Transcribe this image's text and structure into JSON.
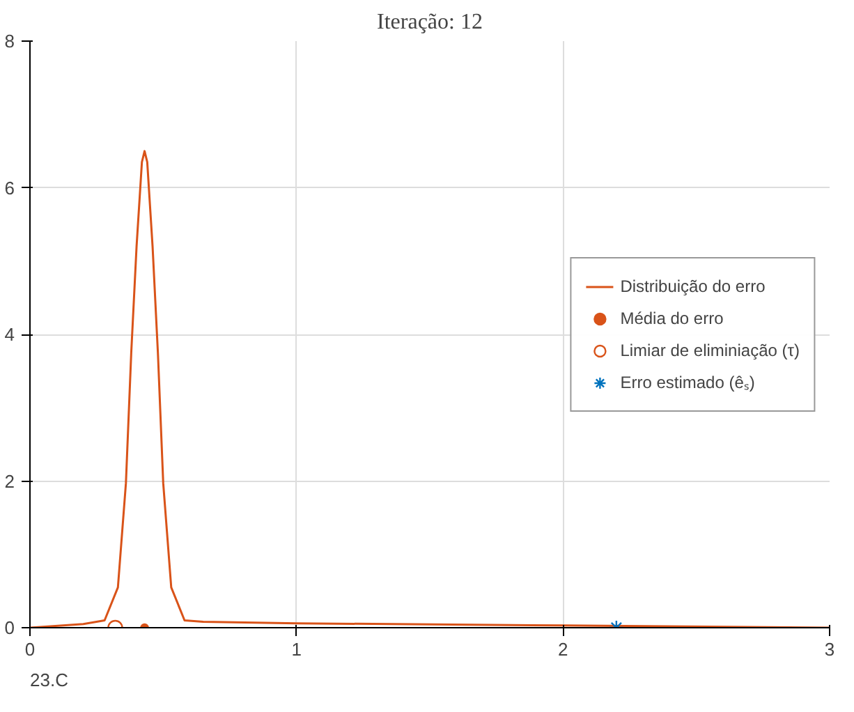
{
  "chart_data": {
    "type": "line",
    "title": "Iteração: 12",
    "annotations": [
      "23.C"
    ],
    "xlim": [
      0,
      3
    ],
    "xticks": [
      0,
      1,
      2,
      3
    ],
    "ylim": [
      0,
      8
    ],
    "yticks": [
      0,
      2,
      4,
      6,
      8
    ],
    "grid": true,
    "legend": "right",
    "series": [
      {
        "name": "Distribuição do erro",
        "marker": "none",
        "color": "#d95319",
        "x": [
          0,
          0.2,
          0.28,
          0.33,
          0.36,
          0.38,
          0.4,
          0.42,
          0.43,
          0.44,
          0.46,
          0.48,
          0.5,
          0.53,
          0.58,
          0.65,
          1,
          2,
          3
        ],
        "values": [
          0,
          0.05,
          0.1,
          0.55,
          1.97,
          3.75,
          5.2,
          6.35,
          6.5,
          6.35,
          5.2,
          3.75,
          1.97,
          0.55,
          0.1,
          0.08,
          0.06,
          0.03,
          0
        ]
      },
      {
        "name": "Média do erro",
        "type": "scatter",
        "color": "#d95319",
        "x": [
          0.43
        ],
        "values": [
          0
        ]
      },
      {
        "name": "Limiar de eliminiação (τ)",
        "type": "scatter",
        "marker": "circle",
        "color": "#d95319",
        "x": [
          0.32
        ],
        "values": [
          0
        ]
      },
      {
        "name": "Erro estimado (êₛ)",
        "type": "scatter",
        "marker": "cross",
        "color": "#0072bd",
        "x": [
          2.2
        ],
        "values": [
          0
        ]
      }
    ]
  }
}
